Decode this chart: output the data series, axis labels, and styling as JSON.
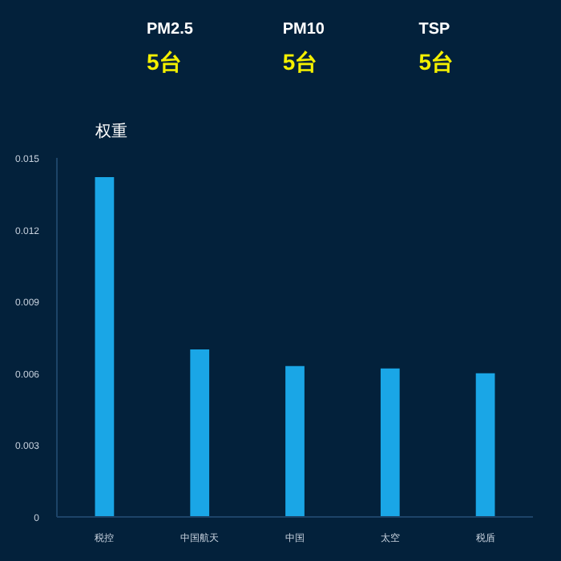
{
  "chart_data": {
    "type": "bar",
    "annotations": [
      "PM2.5",
      "5台",
      "PM10",
      "5台",
      "TSP",
      "5台"
    ],
    "ylabel": "权重",
    "categories": [
      "税控",
      "中国航天",
      "中国",
      "太空",
      "税盾"
    ],
    "values": [
      0.0142,
      0.007,
      0.0063,
      0.0062,
      0.006
    ],
    "color": "#1aa6e6",
    "ylim": [
      0,
      0.015
    ],
    "yticks": [
      0,
      0.003,
      0.006,
      0.009,
      0.012,
      0.015
    ],
    "grid": false
  }
}
